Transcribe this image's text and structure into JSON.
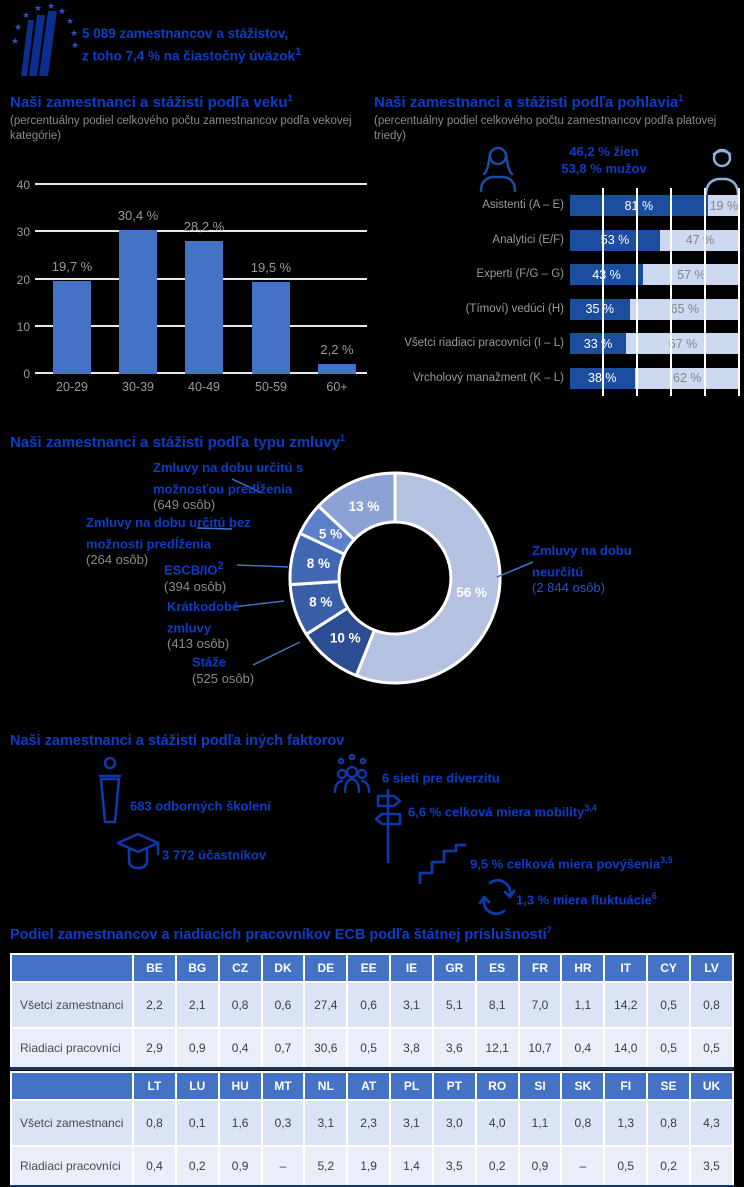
{
  "colors": {
    "ecb_blue": "#0c3dc4",
    "bar_blue": "#4472c4",
    "gender_women": "#1c4ea0",
    "gender_men": "#ccd9f1",
    "table_header": "#4472c4",
    "table_row1": "#dbe4f4",
    "table_row2": "#eaeef8",
    "gray_text": "#9a9a9a",
    "navy_border": "#16356e"
  },
  "header": {
    "line1": "5 089 zamestnancov a stážistov,",
    "line2": "z toho 7,4 % na čiastočný úväzok",
    "line2_sup": "1"
  },
  "sections": {
    "age": {
      "title": "Naši zamestnanci a stážisti podľa veku",
      "title_sup": "1",
      "subtitle": "(percentuálny podiel celkového počtu zamestnancov podľa vekovej kategórie)"
    },
    "gender": {
      "title": "Naši zamestnanci a stážisti podľa pohlavia",
      "title_sup": "1",
      "subtitle": "(percentuálny podiel celkového počtu zamestnancov podľa platovej triedy)",
      "women_total": "46,2 % žien",
      "men_total": "53,8 % mužov"
    },
    "contracts": {
      "title": "Naši zamestnanci a stážisti podľa typu zmluvy",
      "title_sup": "1"
    },
    "factors": {
      "title": "Naši zamestnanci a stážisti podľa iných faktorov",
      "items": [
        {
          "id": "trainings",
          "text": "683 odborných školení",
          "sup": ""
        },
        {
          "id": "participants",
          "text": "3 772 účastníkov",
          "sup": ""
        },
        {
          "id": "networks",
          "text": "6 sietí pre diverzitu",
          "sup": ""
        },
        {
          "id": "mobility",
          "text": "6,6 % celková miera mobility",
          "sup": "3,4"
        },
        {
          "id": "promotions",
          "text": "9,5 % celková miera povýšenia",
          "sup": "3,5"
        },
        {
          "id": "turnover",
          "text": "1,3 % miera fluktuácie",
          "sup": "6"
        }
      ]
    },
    "nationality": {
      "title": "Podiel zamestnancov a riadiacich pracovníkov ECB podľa štátnej príslušnosti",
      "title_sup": "7"
    }
  },
  "chart_data": [
    {
      "id": "age",
      "type": "bar",
      "title": "Naši zamestnanci a stážisti podľa veku",
      "categories": [
        "20-29",
        "30-39",
        "40-49",
        "50-59",
        "60+"
      ],
      "values": [
        19.7,
        30.4,
        28.2,
        19.5,
        2.2
      ],
      "value_labels": [
        "19,7 %",
        "30,4 %",
        "28,2 %",
        "19,5 %",
        "2,2 %"
      ],
      "yticks": [
        0,
        10,
        20,
        30,
        40
      ],
      "ylim": [
        0,
        40
      ],
      "grid": true,
      "unit": "%"
    },
    {
      "id": "gender",
      "type": "stacked-bar",
      "title": "Naši zamestnanci a stážisti podľa pohlavia",
      "categories": [
        "Asistenti (A – E)",
        "Analytici (E/F)",
        "Experti (F/G – G)",
        "(Tímoví) vedúci (H)",
        "Všetci riadiaci pracovníci (I – L)",
        "Vrcholový manažment (K – L)"
      ],
      "series": [
        {
          "name": "ženy",
          "values": [
            81,
            53,
            43,
            35,
            33,
            38
          ],
          "labels": [
            "81 %",
            "53 %",
            "43 %",
            "35 %",
            "33 %",
            "38 %"
          ]
        },
        {
          "name": "muži",
          "values": [
            19,
            47,
            57,
            65,
            67,
            62
          ],
          "labels": [
            "19 %",
            "47 %",
            "57 %",
            "65 %",
            "67 %",
            "62 %"
          ]
        }
      ],
      "annotations": [
        "46,2 % žien",
        "53,8 % mužov"
      ],
      "xlim": [
        0,
        100
      ],
      "unit": "%"
    },
    {
      "id": "contracts",
      "type": "donut",
      "title": "Naši zamestnanci a stážisti podľa typu zmluvy",
      "slices": [
        {
          "label": "Zmluvy na dobu neurčitú",
          "sup": "",
          "count": "(2 844 osôb)",
          "pct": 56,
          "pct_label": "56 %",
          "color": "#b5c1e1"
        },
        {
          "label": "Stáže",
          "sup": "",
          "count": "(525 osôb)",
          "pct": 10,
          "pct_label": "10 %",
          "color": "#2c4d92"
        },
        {
          "label": "Krátkodobé zmluvy",
          "sup": "",
          "count": "(413 osôb)",
          "pct": 8,
          "pct_label": "8 %",
          "color": "#3a5fa9"
        },
        {
          "label": "ESCB/IO",
          "sup": "2",
          "count": "(394 osôb)",
          "pct": 8,
          "pct_label": "8 %",
          "color": "#4267b2"
        },
        {
          "label": "Zmluvy na dobu určitú bez možnosti predĺženia",
          "sup": "",
          "count": "(264 osôb)",
          "pct": 5,
          "pct_label": "5 %",
          "color": "#5b80ca"
        },
        {
          "label": "Zmluvy na dobu určitú s možnosťou predĺženia",
          "sup": "",
          "count": "(649 osôb)",
          "pct": 13,
          "pct_label": "13 %",
          "color": "#8da2d4"
        }
      ]
    },
    {
      "id": "nationality",
      "type": "table",
      "title": "Podiel zamestnancov a riadiacich pracovníkov ECB podľa štátnej príslušnosti",
      "row_labels": [
        "Všetci zamestnanci",
        "Riadiaci pracovníci"
      ],
      "tables": [
        {
          "columns": [
            "BE",
            "BG",
            "CZ",
            "DK",
            "DE",
            "EE",
            "IE",
            "GR",
            "ES",
            "FR",
            "HR",
            "IT",
            "CY",
            "LV"
          ],
          "rows": [
            [
              "2,2",
              "2,1",
              "0,8",
              "0,6",
              "27,4",
              "0,6",
              "3,1",
              "5,1",
              "8,1",
              "7,0",
              "1,1",
              "14,2",
              "0,5",
              "0,8"
            ],
            [
              "2,9",
              "0,9",
              "0,4",
              "0,7",
              "30,6",
              "0,5",
              "3,8",
              "3,6",
              "12,1",
              "10,7",
              "0,4",
              "14,0",
              "0,5",
              "0,5"
            ]
          ]
        },
        {
          "columns": [
            "LT",
            "LU",
            "HU",
            "MT",
            "NL",
            "AT",
            "PL",
            "PT",
            "RO",
            "SI",
            "SK",
            "FI",
            "SE",
            "UK"
          ],
          "rows": [
            [
              "0,8",
              "0,1",
              "1,6",
              "0,3",
              "3,1",
              "2,3",
              "3,1",
              "3,0",
              "4,0",
              "1,1",
              "0,8",
              "1,3",
              "0,8",
              "4,3"
            ],
            [
              "0,4",
              "0,2",
              "0,9",
              "–",
              "5,2",
              "1,9",
              "1,4",
              "3,5",
              "0,2",
              "0,9",
              "–",
              "0,5",
              "0,2",
              "3,5"
            ]
          ]
        }
      ]
    }
  ]
}
